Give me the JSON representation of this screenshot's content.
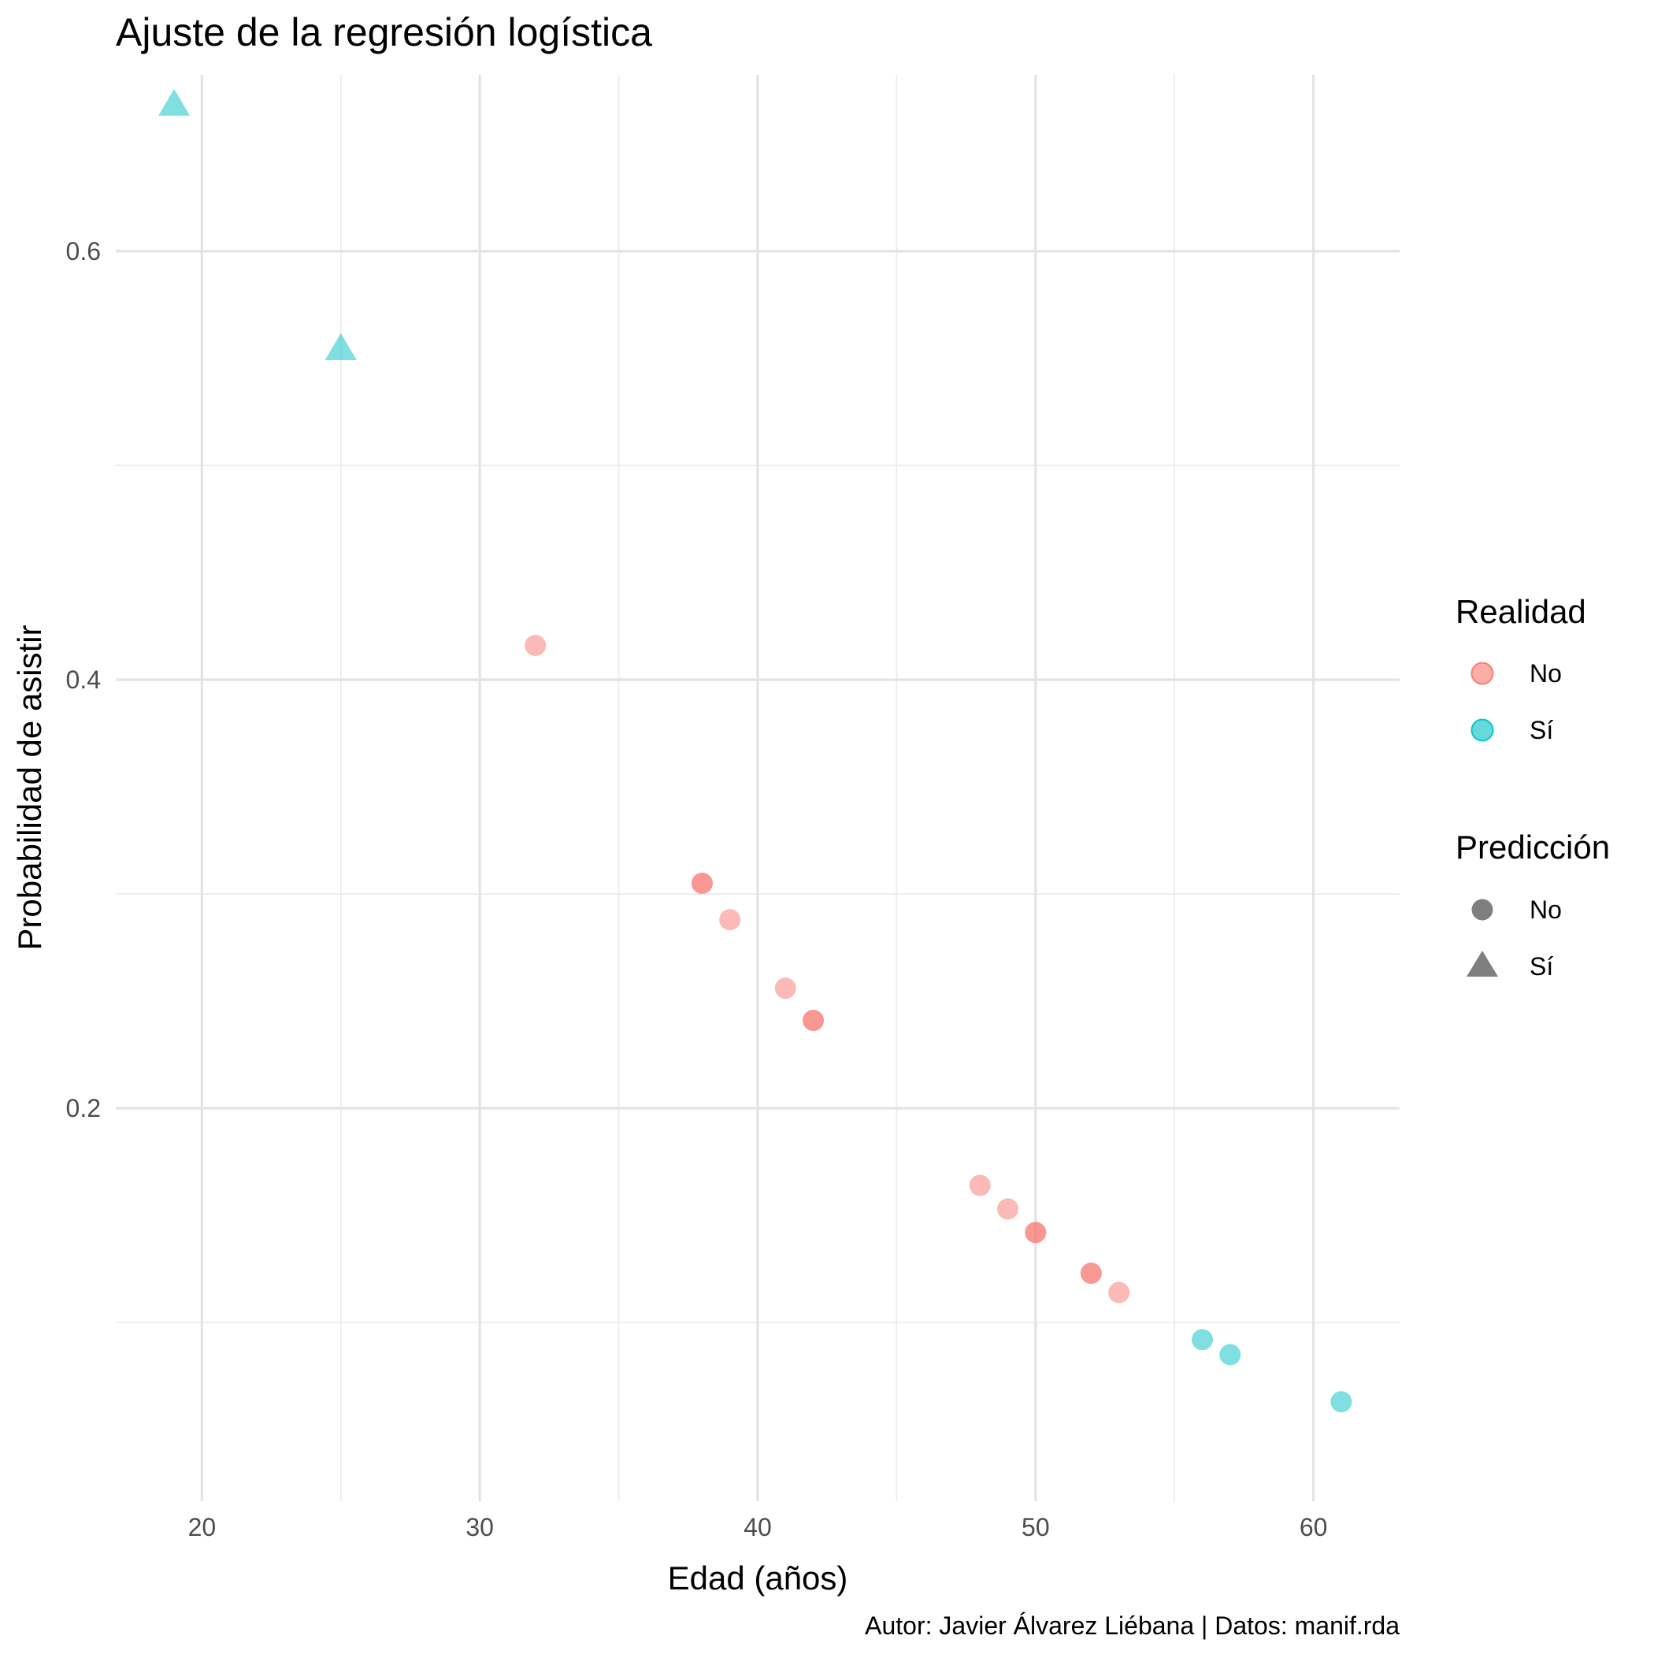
{
  "chart_data": {
    "type": "scatter",
    "title": "Ajuste de la regresión logística",
    "xlabel": "Edad (años)",
    "ylabel": "Probabilidad de asistir",
    "caption": "Autor: Javier Álvarez Liébana | Datos: manif.rda",
    "xlim": [
      16.9,
      63.1
    ],
    "ylim": [
      0.0166,
      0.6823
    ],
    "x_ticks": [
      20,
      30,
      40,
      50,
      60
    ],
    "y_ticks": [
      0.2,
      0.4,
      0.6
    ],
    "grid": true,
    "legend_position": "right",
    "colors": {
      "No": "#F8766D",
      "Sí": "#00BFC4"
    },
    "legends": [
      {
        "title": "Realidad",
        "aesthetic": "color",
        "items": [
          {
            "label": "No",
            "color": "#F8766D"
          },
          {
            "label": "Sí",
            "color": "#00BFC4"
          }
        ]
      },
      {
        "title": "Predicción",
        "aesthetic": "shape",
        "items": [
          {
            "label": "No",
            "shape": "circle"
          },
          {
            "label": "Sí",
            "shape": "triangle"
          }
        ]
      }
    ],
    "points": [
      {
        "x": 19,
        "y": 0.668,
        "realidad": "Sí",
        "prediccion": "Sí"
      },
      {
        "x": 25,
        "y": 0.554,
        "realidad": "Sí",
        "prediccion": "Sí"
      },
      {
        "x": 32,
        "y": 0.416,
        "realidad": "No",
        "prediccion": "No"
      },
      {
        "x": 38,
        "y": 0.305,
        "realidad": "No",
        "prediccion": "No"
      },
      {
        "x": 38,
        "y": 0.305,
        "realidad": "No",
        "prediccion": "No"
      },
      {
        "x": 39,
        "y": 0.288,
        "realidad": "No",
        "prediccion": "No"
      },
      {
        "x": 41,
        "y": 0.256,
        "realidad": "No",
        "prediccion": "No"
      },
      {
        "x": 42,
        "y": 0.241,
        "realidad": "No",
        "prediccion": "No"
      },
      {
        "x": 42,
        "y": 0.241,
        "realidad": "No",
        "prediccion": "No"
      },
      {
        "x": 48,
        "y": 0.164,
        "realidad": "No",
        "prediccion": "No"
      },
      {
        "x": 49,
        "y": 0.153,
        "realidad": "No",
        "prediccion": "No"
      },
      {
        "x": 50,
        "y": 0.142,
        "realidad": "No",
        "prediccion": "No"
      },
      {
        "x": 50,
        "y": 0.142,
        "realidad": "No",
        "prediccion": "No"
      },
      {
        "x": 52,
        "y": 0.123,
        "realidad": "No",
        "prediccion": "No"
      },
      {
        "x": 52,
        "y": 0.123,
        "realidad": "No",
        "prediccion": "No"
      },
      {
        "x": 53,
        "y": 0.114,
        "realidad": "No",
        "prediccion": "No"
      },
      {
        "x": 56,
        "y": 0.092,
        "realidad": "Sí",
        "prediccion": "No"
      },
      {
        "x": 57,
        "y": 0.085,
        "realidad": "Sí",
        "prediccion": "No"
      },
      {
        "x": 61,
        "y": 0.063,
        "realidad": "Sí",
        "prediccion": "No"
      }
    ]
  }
}
